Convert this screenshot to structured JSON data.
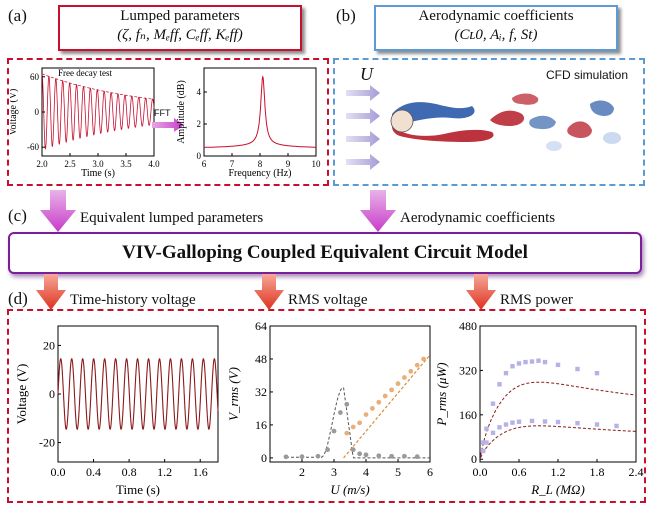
{
  "labels": {
    "a": "(a)",
    "b": "(b)",
    "c": "(c)",
    "d": "(d)"
  },
  "box_a": {
    "title": "Lumped parameters",
    "subtitle": "(ζ, fₙ, Mₑff, Cₑff, Kₑff)"
  },
  "box_b": {
    "title": "Aerodynamic coefficients",
    "subtitle": "(Cʟ0, Aᵢ, f, St)"
  },
  "fft_label": "FFT",
  "cfd_label": "CFD simulation",
  "flow_symbol": "U",
  "arrow_left_label": "Equivalent lumped parameters",
  "arrow_right_label": "Aerodynamic coefficients",
  "banner": "VIV-Galloping Coupled Equivalent Circuit Model",
  "section_titles": {
    "d1": "Time-history voltage",
    "d2": "RMS voltage",
    "d3": "RMS power"
  },
  "colors": {
    "red": "#c8102e",
    "blue": "#5b9bd5",
    "purple": "#7a1f9a",
    "magenta": "#c83cc8",
    "orange": "#d98b3a"
  },
  "chart_data": [
    {
      "id": "decay",
      "type": "line",
      "xlabel": "Time (s)",
      "ylabel": "Voltage (V)",
      "annotation": "Free decay test",
      "xlim": [
        2.0,
        4.0
      ],
      "ylim": [
        -75,
        75
      ],
      "xticks": [
        "2.0",
        "2.5",
        "3.0",
        "3.5",
        "4.0"
      ],
      "yticks": [
        "60",
        "0",
        "-60"
      ],
      "initial_amplitude": 65,
      "frequency_hz": 8.1,
      "decay_rate": 0.55
    },
    {
      "id": "fft",
      "type": "line",
      "xlabel": "Frequency (Hz)",
      "ylabel": "Amplitude (dB)",
      "xlim": [
        6,
        10
      ],
      "ylim": [
        0,
        5.5
      ],
      "xticks": [
        "6",
        "7",
        "8",
        "9",
        "10"
      ],
      "yticks": [
        "0",
        "2",
        "4"
      ],
      "peak_hz": 8.1,
      "peak_value": 4.7,
      "baseline": 0.5
    },
    {
      "id": "time_voltage",
      "type": "line",
      "xlabel": "Time (s)",
      "ylabel": "Voltage (V)",
      "xlim": [
        0,
        1.8
      ],
      "ylim": [
        -28,
        28
      ],
      "xticks": [
        "0.0",
        "0.4",
        "0.8",
        "1.2",
        "1.6"
      ],
      "yticks": [
        "20",
        "0",
        "-20"
      ],
      "amplitude": 14.5,
      "frequency_hz": 8.1
    },
    {
      "id": "rms_voltage",
      "type": "scatter",
      "xlabel": "U (m/s)",
      "ylabel": "V_rms (V)",
      "xlim": [
        1,
        6
      ],
      "ylim": [
        -2,
        64
      ],
      "xticks": [
        "2",
        "3",
        "4",
        "5",
        "6"
      ],
      "yticks": [
        "0",
        "16",
        "32",
        "48",
        "64"
      ],
      "series": [
        {
          "values": [
            [
              1.5,
              0.5
            ],
            [
              2.0,
              0.6
            ],
            [
              2.5,
              0.8
            ],
            [
              2.8,
              4
            ],
            [
              3.0,
              13
            ],
            [
              3.2,
              22
            ],
            [
              3.4,
              26
            ],
            [
              3.6,
              4
            ],
            [
              3.8,
              2
            ],
            [
              4.0,
              1.5
            ],
            [
              4.4,
              1
            ],
            [
              4.8,
              0.8
            ],
            [
              5.2,
              0.8
            ],
            [
              5.6,
              0.6
            ]
          ]
        },
        {
          "values": [
            [
              3.4,
              12
            ],
            [
              3.6,
              15
            ],
            [
              3.8,
              17
            ],
            [
              4.0,
              21
            ],
            [
              4.2,
              24
            ],
            [
              4.4,
              27
            ],
            [
              4.6,
              30
            ],
            [
              4.8,
              33
            ],
            [
              5.0,
              36
            ],
            [
              5.2,
              39
            ],
            [
              5.4,
              42
            ],
            [
              5.6,
              45
            ],
            [
              5.8,
              48
            ]
          ]
        }
      ]
    },
    {
      "id": "rms_power",
      "type": "scatter",
      "xlabel": "R_L (MΩ)",
      "ylabel": "P_rms (μW)",
      "xlim": [
        0,
        2.4
      ],
      "ylim": [
        -10,
        480
      ],
      "xticks": [
        "0.0",
        "0.6",
        "1.2",
        "1.8",
        "2.4"
      ],
      "yticks": [
        "0",
        "160",
        "320",
        "480"
      ],
      "series": [
        {
          "values": [
            [
              0.05,
              60
            ],
            [
              0.1,
              110
            ],
            [
              0.2,
              200
            ],
            [
              0.3,
              270
            ],
            [
              0.4,
              310
            ],
            [
              0.5,
              335
            ],
            [
              0.6,
              345
            ],
            [
              0.7,
              350
            ],
            [
              0.8,
              352
            ],
            [
              0.9,
              355
            ],
            [
              1.0,
              350
            ],
            [
              1.2,
              340
            ],
            [
              1.5,
              325
            ],
            [
              1.8,
              310
            ]
          ]
        },
        {
          "values": [
            [
              0.05,
              30
            ],
            [
              0.1,
              60
            ],
            [
              0.2,
              95
            ],
            [
              0.3,
              115
            ],
            [
              0.4,
              125
            ],
            [
              0.5,
              132
            ],
            [
              0.6,
              135
            ],
            [
              0.8,
              138
            ],
            [
              1.0,
              136
            ],
            [
              1.2,
              134
            ],
            [
              1.5,
              130
            ],
            [
              1.8,
              125
            ],
            [
              2.1,
              120
            ]
          ]
        }
      ]
    }
  ]
}
